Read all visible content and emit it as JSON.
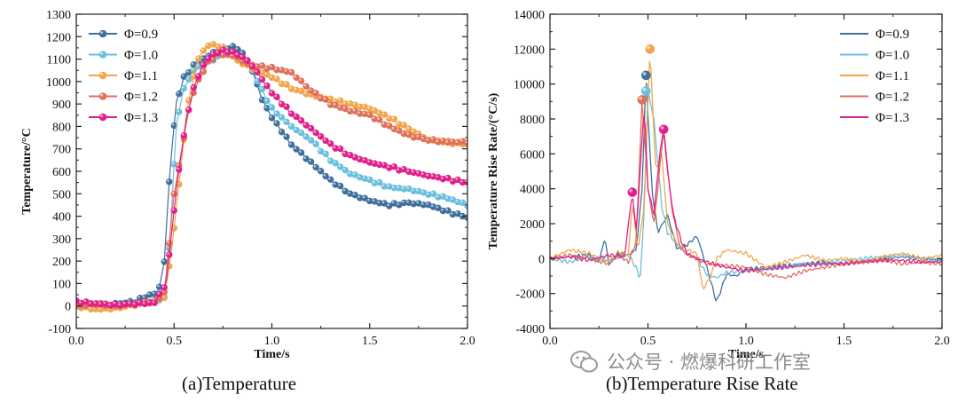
{
  "watermark": {
    "text": "公众号 · 燃爆科研工作室",
    "icon": "wechat-icon",
    "color": "#8c8c8c"
  },
  "chart_data": [
    {
      "type": "line",
      "subtitle": "(a)Temperature",
      "xlabel": "Time/s",
      "ylabel": "Temperature/°C",
      "xlim": [
        0,
        2.0
      ],
      "ylim": [
        -100,
        1300
      ],
      "xticks": [
        0.0,
        0.5,
        1.0,
        1.5,
        2.0
      ],
      "xtick_labels": [
        "0.0",
        "0.5",
        "1.0",
        "1.5",
        "2.0"
      ],
      "yticks": [
        -100,
        0,
        100,
        200,
        300,
        400,
        500,
        600,
        700,
        800,
        900,
        1000,
        1100,
        1200,
        1300
      ],
      "ytick_labels": [
        "-100",
        "0",
        "100",
        "200",
        "300",
        "400",
        "500",
        "600",
        "700",
        "800",
        "900",
        "1000",
        "1100",
        "1200",
        "1300"
      ],
      "grid": false,
      "markers": true,
      "legend_position": "top-left",
      "series": [
        {
          "name": "Φ=0.9",
          "color": "#3f6f9c",
          "x": [
            0.0,
            0.1,
            0.2,
            0.3,
            0.36,
            0.42,
            0.45,
            0.48,
            0.51,
            0.55,
            0.6,
            0.65,
            0.7,
            0.75,
            0.8,
            0.85,
            0.9,
            0.95,
            1.0,
            1.1,
            1.2,
            1.3,
            1.4,
            1.5,
            1.6,
            1.7,
            1.8,
            1.9,
            2.0
          ],
          "y": [
            0,
            0,
            10,
            20,
            45,
            60,
            200,
            620,
            900,
            1020,
            1070,
            1100,
            1130,
            1145,
            1155,
            1130,
            1050,
            920,
            840,
            720,
            640,
            560,
            500,
            470,
            450,
            460,
            450,
            420,
            395
          ]
        },
        {
          "name": "Φ=1.0",
          "color": "#6bbfdd",
          "x": [
            0.0,
            0.1,
            0.2,
            0.3,
            0.4,
            0.45,
            0.48,
            0.51,
            0.55,
            0.6,
            0.65,
            0.7,
            0.75,
            0.8,
            0.85,
            0.9,
            0.95,
            1.0,
            1.1,
            1.2,
            1.3,
            1.4,
            1.5,
            1.6,
            1.7,
            1.8,
            1.9,
            2.0
          ],
          "y": [
            0,
            -5,
            0,
            10,
            20,
            40,
            300,
            800,
            970,
            1050,
            1080,
            1100,
            1120,
            1130,
            1100,
            1050,
            960,
            880,
            800,
            740,
            650,
            590,
            560,
            530,
            520,
            500,
            480,
            450
          ]
        },
        {
          "name": "Φ=1.1",
          "color": "#f2a54a",
          "x": [
            0.0,
            0.1,
            0.2,
            0.3,
            0.4,
            0.45,
            0.48,
            0.52,
            0.57,
            0.62,
            0.67,
            0.7,
            0.75,
            0.8,
            0.85,
            0.9,
            1.0,
            1.1,
            1.2,
            1.3,
            1.4,
            1.5,
            1.6,
            1.7,
            1.8,
            1.9,
            2.0
          ],
          "y": [
            0,
            -15,
            -10,
            5,
            20,
            40,
            200,
            500,
            900,
            1100,
            1160,
            1165,
            1150,
            1110,
            1080,
            1060,
            1020,
            970,
            940,
            920,
            900,
            880,
            840,
            790,
            740,
            730,
            720
          ]
        },
        {
          "name": "Φ=1.2",
          "color": "#e0705a",
          "x": [
            0.0,
            0.1,
            0.2,
            0.3,
            0.4,
            0.45,
            0.5,
            0.54,
            0.58,
            0.62,
            0.67,
            0.72,
            0.77,
            0.82,
            0.87,
            0.92,
            1.0,
            1.1,
            1.2,
            1.3,
            1.4,
            1.5,
            1.6,
            1.7,
            1.8,
            1.9,
            2.0
          ],
          "y": [
            0,
            10,
            0,
            10,
            20,
            60,
            500,
            700,
            900,
            1000,
            1080,
            1120,
            1120,
            1110,
            1080,
            1070,
            1060,
            1040,
            960,
            900,
            870,
            850,
            800,
            760,
            740,
            730,
            730
          ]
        },
        {
          "name": "Φ=1.3",
          "color": "#e0208a",
          "x": [
            0.0,
            0.1,
            0.2,
            0.3,
            0.4,
            0.46,
            0.5,
            0.53,
            0.56,
            0.6,
            0.64,
            0.68,
            0.72,
            0.76,
            0.8,
            0.85,
            0.9,
            0.95,
            1.0,
            1.1,
            1.2,
            1.3,
            1.4,
            1.5,
            1.6,
            1.7,
            1.8,
            1.9,
            2.0
          ],
          "y": [
            20,
            10,
            5,
            10,
            15,
            100,
            430,
            640,
            820,
            970,
            1060,
            1110,
            1130,
            1140,
            1130,
            1110,
            1070,
            1010,
            950,
            860,
            790,
            720,
            670,
            640,
            620,
            600,
            580,
            565,
            550
          ]
        }
      ]
    },
    {
      "type": "line",
      "subtitle": "(b)Temperature Rise Rate",
      "xlabel": "Time/s",
      "ylabel": "Temperature Rise Rate/(°C/s)",
      "xlim": [
        0,
        2.0
      ],
      "ylim": [
        -4000,
        14000
      ],
      "xticks": [
        0.0,
        0.5,
        1.0,
        1.5,
        2.0
      ],
      "xtick_labels": [
        "0.0",
        "0.5",
        "1.0",
        "1.5",
        "2.0"
      ],
      "yticks": [
        -4000,
        -2000,
        0,
        2000,
        4000,
        6000,
        8000,
        10000,
        12000,
        14000
      ],
      "ytick_labels": [
        "-4000",
        "-2000",
        "0",
        "2000",
        "4000",
        "6000",
        "8000",
        "10000",
        "12000",
        "14000"
      ],
      "grid": false,
      "markers": false,
      "legend_position": "top-right",
      "series": [
        {
          "name": "Φ=0.9",
          "color": "#3f6f9c",
          "x": [
            0.0,
            0.1,
            0.2,
            0.25,
            0.28,
            0.3,
            0.35,
            0.4,
            0.44,
            0.47,
            0.49,
            0.52,
            0.55,
            0.6,
            0.65,
            0.7,
            0.75,
            0.8,
            0.85,
            0.9,
            0.95,
            1.0,
            1.1,
            1.2,
            1.3,
            1.4,
            1.5,
            1.6,
            1.7,
            1.8,
            1.9,
            2.0
          ],
          "y": [
            0,
            100,
            200,
            -200,
            1200,
            -300,
            300,
            200,
            500,
            4000,
            10500,
            4000,
            1500,
            2500,
            500,
            800,
            1300,
            -500,
            -2500,
            -900,
            -1000,
            -600,
            -500,
            -400,
            -300,
            -200,
            -300,
            -100,
            0,
            100,
            0,
            -100
          ],
          "peak": {
            "x": 0.49,
            "y": 10500
          }
        },
        {
          "name": "Φ=1.0",
          "color": "#6bbfdd",
          "x": [
            0.0,
            0.1,
            0.2,
            0.3,
            0.4,
            0.44,
            0.46,
            0.48,
            0.5,
            0.53,
            0.57,
            0.6,
            0.65,
            0.7,
            0.75,
            0.8,
            0.85,
            0.9,
            1.0,
            1.1,
            1.2,
            1.3,
            1.4,
            1.5,
            1.6,
            1.7,
            1.8,
            1.9,
            2.0
          ],
          "y": [
            0,
            -200,
            100,
            -100,
            200,
            -500,
            -1200,
            2500,
            9600,
            8000,
            3000,
            1500,
            800,
            200,
            0,
            -900,
            -1100,
            -800,
            -700,
            -600,
            -500,
            -300,
            -300,
            -100,
            0,
            100,
            200,
            0,
            -100
          ],
          "peak": {
            "x": 0.49,
            "y": 9600
          }
        },
        {
          "name": "Φ=1.1",
          "color": "#f2a54a",
          "x": [
            0.0,
            0.1,
            0.2,
            0.3,
            0.35,
            0.4,
            0.42,
            0.45,
            0.48,
            0.51,
            0.54,
            0.57,
            0.6,
            0.65,
            0.7,
            0.75,
            0.78,
            0.82,
            0.85,
            0.9,
            1.0,
            1.1,
            1.2,
            1.3,
            1.4,
            1.5,
            1.6,
            1.7,
            1.8,
            1.9,
            2.0
          ],
          "y": [
            0,
            500,
            300,
            -200,
            400,
            200,
            3200,
            500,
            3000,
            12000,
            5000,
            6000,
            2000,
            800,
            500,
            300,
            -1800,
            -1000,
            0,
            500,
            300,
            -500,
            -200,
            200,
            -100,
            0,
            -200,
            100,
            300,
            0,
            200
          ],
          "peak": {
            "x": 0.51,
            "y": 12000
          }
        },
        {
          "name": "Φ=1.2",
          "color": "#e0705a",
          "x": [
            0.0,
            0.1,
            0.2,
            0.3,
            0.35,
            0.4,
            0.44,
            0.47,
            0.5,
            0.53,
            0.55,
            0.58,
            0.62,
            0.66,
            0.7,
            0.75,
            0.8,
            0.9,
            1.0,
            1.1,
            1.2,
            1.3,
            1.4,
            1.5,
            1.6,
            1.7,
            1.8,
            1.9,
            2.0
          ],
          "y": [
            0,
            200,
            0,
            -300,
            200,
            -200,
            1000,
            9100,
            4000,
            2000,
            4000,
            7500,
            3000,
            800,
            200,
            0,
            -300,
            -400,
            -500,
            -900,
            -1100,
            -700,
            -500,
            -300,
            -200,
            -100,
            -300,
            -200,
            -300
          ],
          "peak": {
            "x": 0.47,
            "y": 9100
          }
        },
        {
          "name": "Φ=1.3",
          "color": "#e0208a",
          "x": [
            0.0,
            0.1,
            0.2,
            0.3,
            0.38,
            0.42,
            0.44,
            0.46,
            0.48,
            0.5,
            0.53,
            0.56,
            0.58,
            0.6,
            0.63,
            0.67,
            0.7,
            0.75,
            0.8,
            0.9,
            1.0,
            1.1,
            1.2,
            1.3,
            1.4,
            1.5,
            1.6,
            1.7,
            1.8,
            1.9,
            2.0
          ],
          "y": [
            0,
            100,
            -100,
            200,
            100,
            3800,
            1500,
            5000,
            8800,
            4000,
            2500,
            6000,
            7400,
            5000,
            2500,
            1000,
            300,
            0,
            -200,
            -500,
            -700,
            -600,
            -500,
            -400,
            -300,
            -300,
            -200,
            -100,
            -100,
            -200,
            -200
          ],
          "peaks": [
            {
              "x": 0.42,
              "y": 3800
            },
            {
              "x": 0.58,
              "y": 7400
            }
          ]
        }
      ]
    }
  ]
}
